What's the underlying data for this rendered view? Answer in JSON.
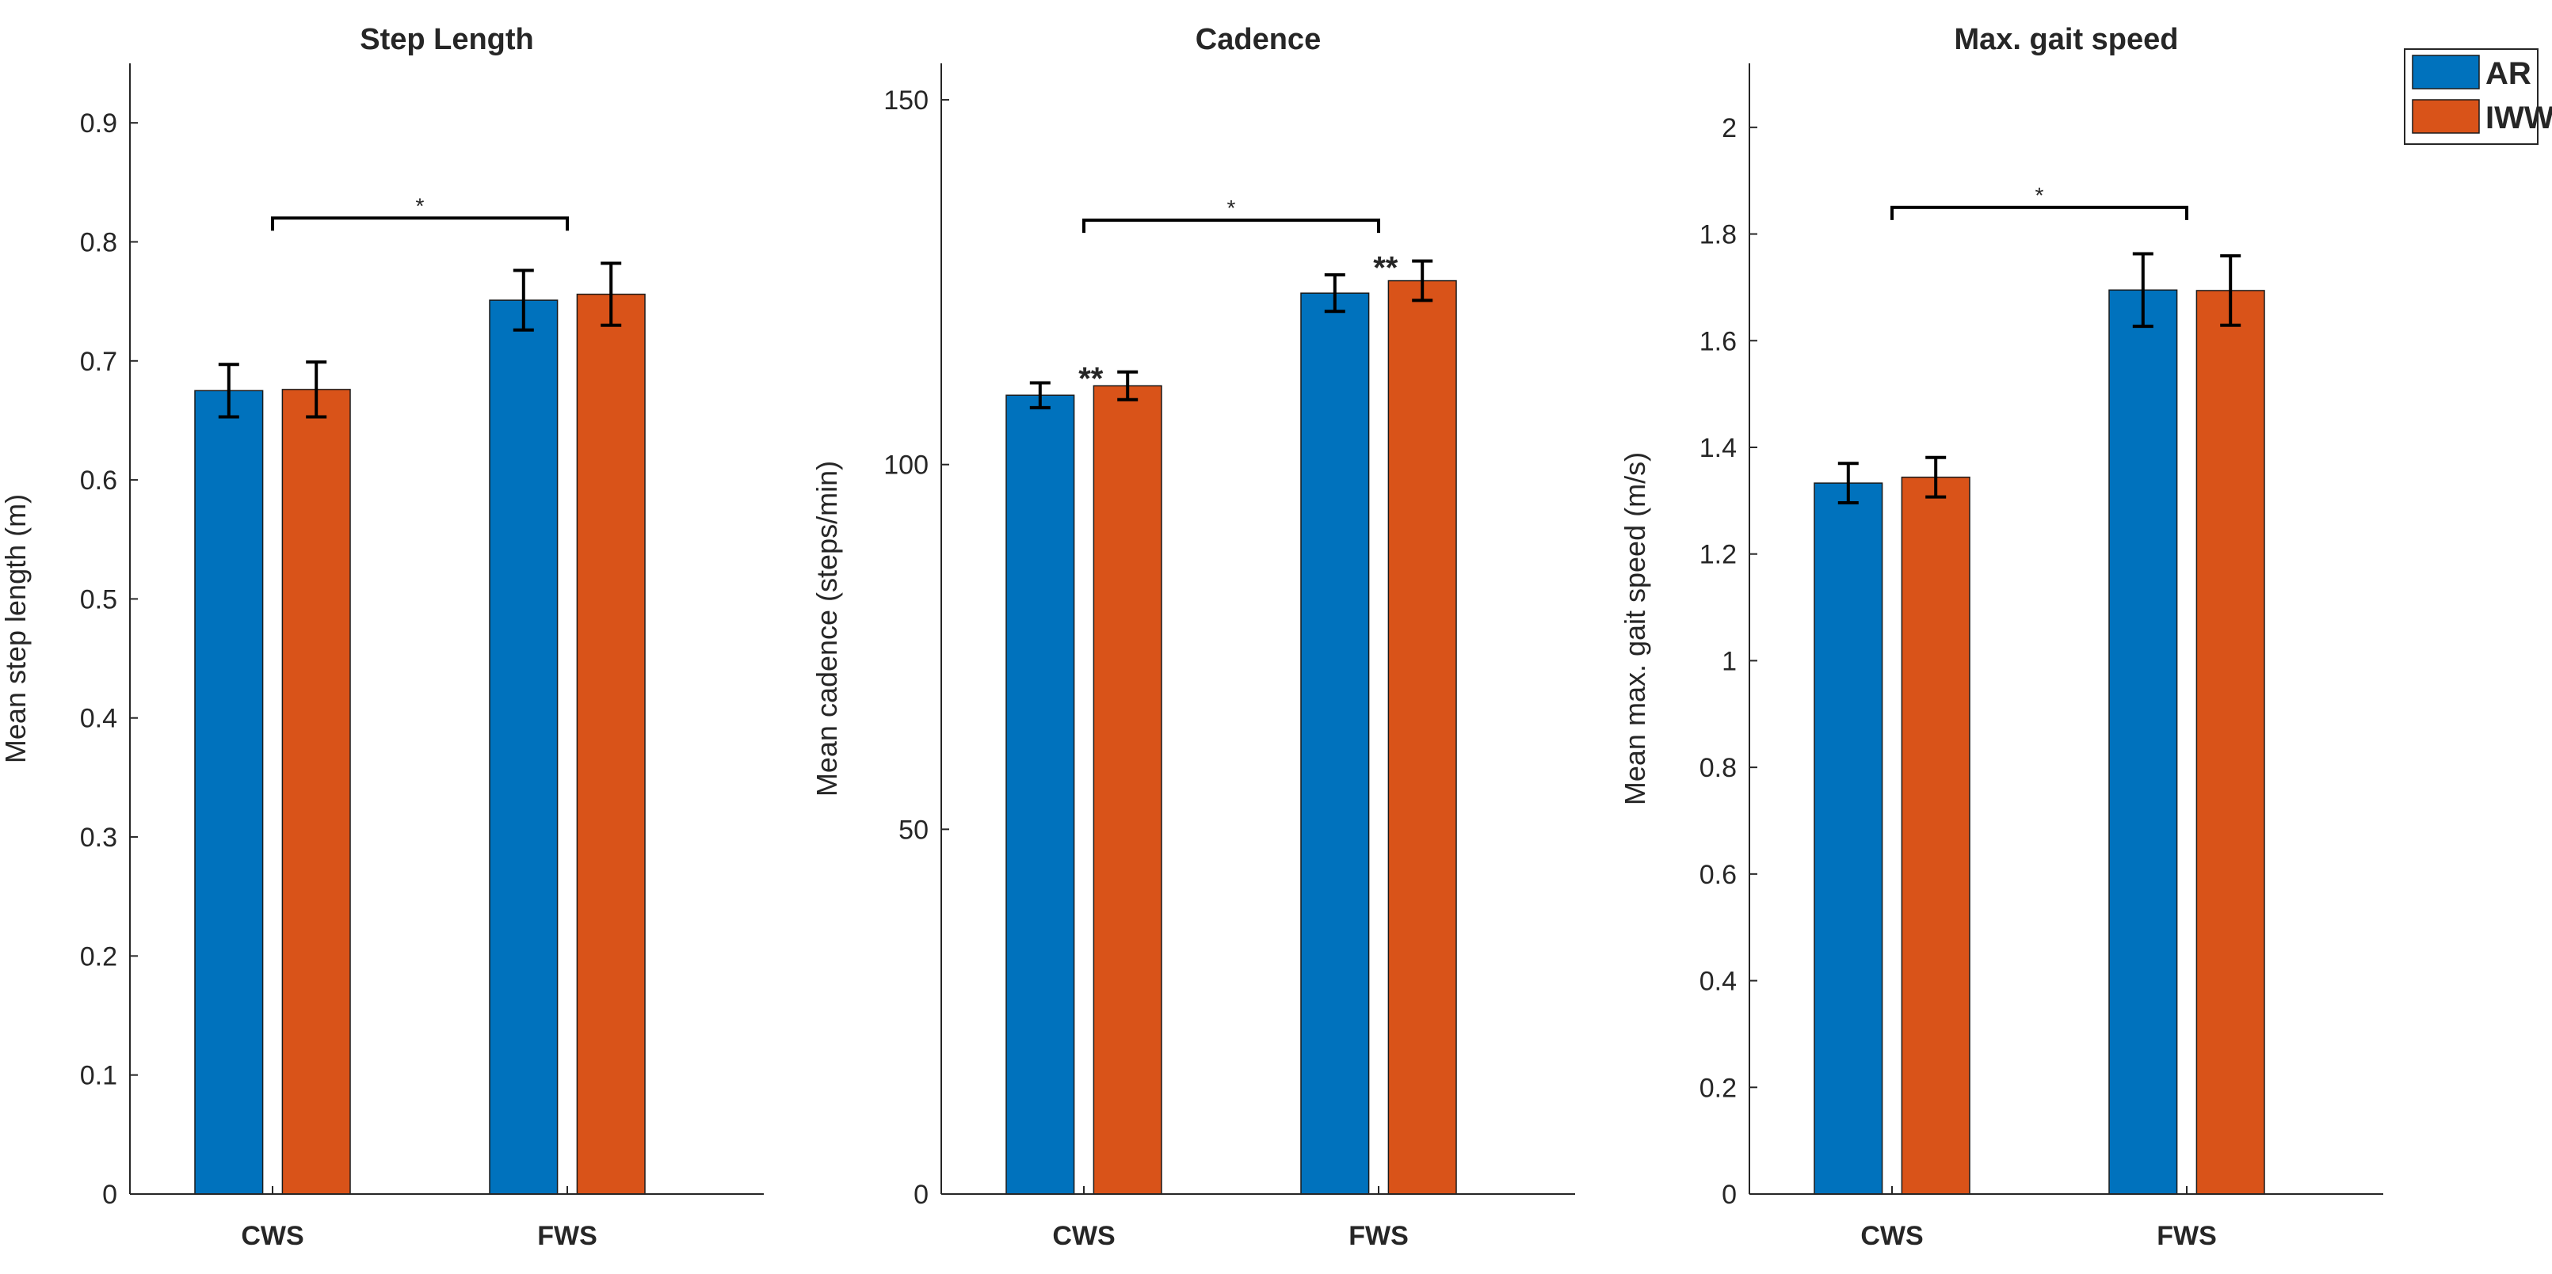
{
  "chart_data": [
    {
      "type": "bar",
      "title": "Step Length",
      "xlabel": "",
      "ylabel": "Mean step length (m)",
      "categories": [
        "CWS",
        "FWS"
      ],
      "ylim": [
        0,
        0.95
      ],
      "yticks": [
        0,
        0.1,
        0.2,
        0.3,
        0.4,
        0.5,
        0.6,
        0.7,
        0.8,
        0.9
      ],
      "ytick_labels": [
        "0",
        "0.1",
        "0.2",
        "0.3",
        "0.4",
        "0.5",
        "0.6",
        "0.7",
        "0.8",
        "0.9"
      ],
      "series": [
        {
          "name": "AR",
          "values": [
            0.675,
            0.751
          ],
          "errors": [
            0.022,
            0.025
          ]
        },
        {
          "name": "IWW",
          "values": [
            0.676,
            0.756
          ],
          "errors": [
            0.023,
            0.026
          ]
        }
      ],
      "bracket": {
        "from": "CWS",
        "to": "FWS",
        "y": 0.82,
        "label": "*"
      },
      "bar_annotations": []
    },
    {
      "type": "bar",
      "title": "Cadence",
      "xlabel": "",
      "ylabel": "Mean cadence (steps/min)",
      "categories": [
        "CWS",
        "FWS"
      ],
      "ylim": [
        0,
        155
      ],
      "yticks": [
        0,
        50,
        100,
        150
      ],
      "ytick_labels": [
        "0",
        "50",
        "100",
        "150"
      ],
      "series": [
        {
          "name": "AR",
          "values": [
            109.5,
            123.5
          ],
          "errors": [
            1.7,
            2.5
          ]
        },
        {
          "name": "IWW",
          "values": [
            110.8,
            125.2
          ],
          "errors": [
            1.9,
            2.7
          ]
        }
      ],
      "bracket": {
        "from": "CWS",
        "to": "FWS",
        "y": 133.5,
        "label": "*"
      },
      "bar_annotations": [
        {
          "category": "CWS",
          "series": "IWW",
          "label": "**"
        },
        {
          "category": "FWS",
          "series": "IWW",
          "label": "**"
        }
      ]
    },
    {
      "type": "bar",
      "title": "Max. gait speed",
      "xlabel": "",
      "ylabel": "Mean max. gait speed (m/s)",
      "categories": [
        "CWS",
        "FWS"
      ],
      "ylim": [
        0,
        2.12
      ],
      "yticks": [
        0,
        0.2,
        0.4,
        0.6,
        0.8,
        1,
        1.2,
        1.4,
        1.6,
        1.8,
        2
      ],
      "ytick_labels": [
        "0",
        "0.2",
        "0.4",
        "0.6",
        "0.8",
        "1",
        "1.2",
        "1.4",
        "1.6",
        "1.8",
        "2"
      ],
      "series": [
        {
          "name": "AR",
          "values": [
            1.333,
            1.695
          ],
          "errors": [
            0.037,
            0.068
          ]
        },
        {
          "name": "IWW",
          "values": [
            1.344,
            1.694
          ],
          "errors": [
            0.037,
            0.065
          ]
        }
      ],
      "bracket": {
        "from": "CWS",
        "to": "FWS",
        "y": 1.85,
        "label": "*"
      },
      "bar_annotations": []
    }
  ],
  "legend": {
    "position": "top-right",
    "entries": [
      {
        "label": "AR",
        "color": "#0072BD"
      },
      {
        "label": "IWW",
        "color": "#D95319"
      }
    ]
  }
}
